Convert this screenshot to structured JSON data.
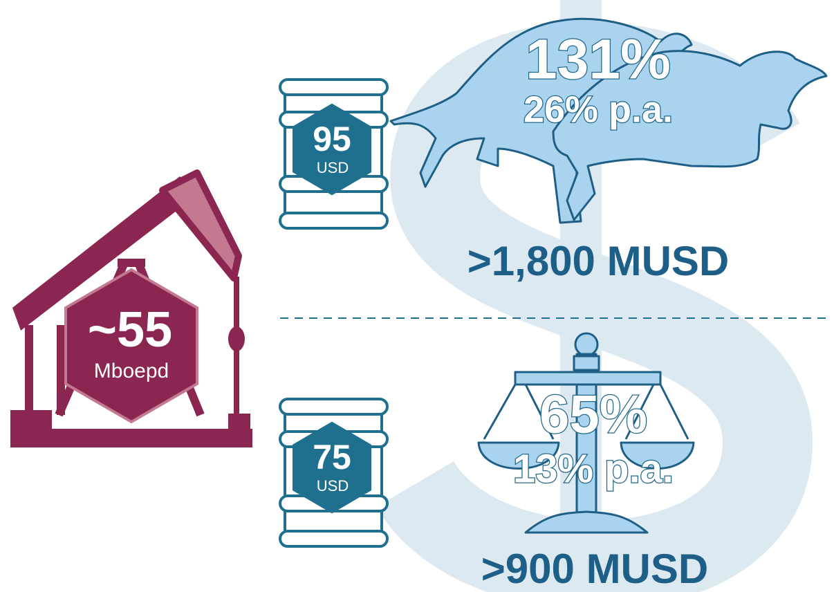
{
  "production": {
    "value": "~55",
    "unit": "Mboepd"
  },
  "scenarios": [
    {
      "price": "95",
      "price_unit": "USD",
      "return": "131%",
      "annual": "26% p.a.",
      "value": ">1,800 MUSD"
    },
    {
      "price": "75",
      "price_unit": "USD",
      "return": "65%",
      "annual": "13% p.a.",
      "value": ">900 MUSD"
    }
  ]
}
